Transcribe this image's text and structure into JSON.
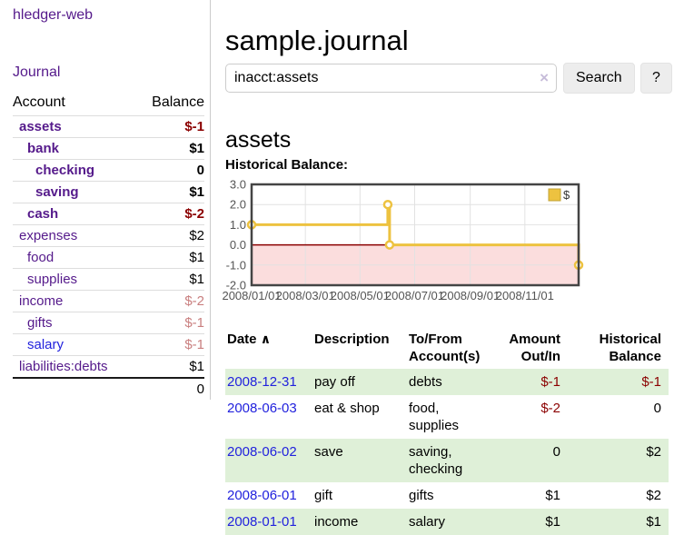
{
  "app": {
    "brand": "hledger-web",
    "nav_journal": "Journal"
  },
  "sidebar": {
    "columns": {
      "account": "Account",
      "balance": "Balance"
    },
    "rows": [
      {
        "account": "assets",
        "balance": "$-1",
        "depth": 1,
        "bold": true,
        "tone": "negative-strong",
        "link": "visited"
      },
      {
        "account": "bank",
        "balance": "$1",
        "depth": 2,
        "bold": true,
        "tone": "normal",
        "link": "visited"
      },
      {
        "account": "checking",
        "balance": "0",
        "depth": 3,
        "bold": true,
        "tone": "normal",
        "link": "visited"
      },
      {
        "account": "saving",
        "balance": "$1",
        "depth": 3,
        "bold": true,
        "tone": "normal",
        "link": "visited"
      },
      {
        "account": "cash",
        "balance": "$-2",
        "depth": 2,
        "bold": true,
        "tone": "negative-strong",
        "link": "visited"
      },
      {
        "account": "expenses",
        "balance": "$2",
        "depth": 1,
        "bold": false,
        "tone": "normal",
        "link": "visited"
      },
      {
        "account": "food",
        "balance": "$1",
        "depth": 2,
        "bold": false,
        "tone": "normal",
        "link": "visited"
      },
      {
        "account": "supplies",
        "balance": "$1",
        "depth": 2,
        "bold": false,
        "tone": "normal",
        "link": "visited"
      },
      {
        "account": "income",
        "balance": "$-2",
        "depth": 1,
        "bold": false,
        "tone": "negative-soft",
        "link": "visited"
      },
      {
        "account": "gifts",
        "balance": "$-1",
        "depth": 2,
        "bold": false,
        "tone": "negative-soft",
        "link": "visited"
      },
      {
        "account": "salary",
        "balance": "$-1",
        "depth": 2,
        "bold": false,
        "tone": "negative-soft",
        "link": "new"
      },
      {
        "account": "liabilities:debts",
        "balance": "$1",
        "depth": 1,
        "bold": false,
        "tone": "normal",
        "link": "visited"
      }
    ],
    "total": "0"
  },
  "header": {
    "title": "sample.journal"
  },
  "search": {
    "value": "inacct:assets",
    "clear_icon": "×",
    "button_label": "Search",
    "help_label": "?"
  },
  "account_page": {
    "title": "assets",
    "chart_label": "Historical Balance:"
  },
  "chart_data": {
    "type": "line",
    "step": true,
    "legend": "$",
    "legend_position": "top-right",
    "series": [
      {
        "name": "$",
        "color": "#edc240",
        "points": [
          {
            "date": "2008-01-01",
            "day": 0,
            "value": 1
          },
          {
            "date": "2008-06-01",
            "day": 152,
            "value": 2
          },
          {
            "date": "2008-06-03",
            "day": 154,
            "value": 0
          },
          {
            "date": "2008-12-31",
            "day": 365,
            "value": -1
          }
        ]
      }
    ],
    "xlim": [
      0,
      365
    ],
    "ylim": [
      -2,
      3
    ],
    "yticks": [
      {
        "v": 3,
        "label": "3.0"
      },
      {
        "v": 2,
        "label": "2.0"
      },
      {
        "v": 1,
        "label": "1.0"
      },
      {
        "v": 0,
        "label": "0.0"
      },
      {
        "v": -1,
        "label": "-1.0"
      },
      {
        "v": -2,
        "label": "-2.0"
      }
    ],
    "xticks": [
      {
        "day": 0,
        "label": "2008/01/01"
      },
      {
        "day": 60,
        "label": "2008/03/01"
      },
      {
        "day": 121,
        "label": "2008/05/01"
      },
      {
        "day": 182,
        "label": "2008/07/01"
      },
      {
        "day": 244,
        "label": "2008/09/01"
      },
      {
        "day": 305,
        "label": "2008/11/01"
      }
    ],
    "grid": true,
    "negative_region_fill": "#fbdddd",
    "zero_line_color": "#8b0000",
    "tick_label_color": "#545454",
    "border_color": "#444444"
  },
  "register": {
    "columns": [
      {
        "label": "Date",
        "label2": "",
        "sort": "∧",
        "align": "left"
      },
      {
        "label": "Description",
        "label2": "",
        "align": "left"
      },
      {
        "label": "To/From",
        "label2": "Account(s)",
        "align": "left"
      },
      {
        "label": "Amount",
        "label2": "Out/In",
        "align": "right"
      },
      {
        "label": "Historical",
        "label2": "Balance",
        "align": "right"
      }
    ],
    "rows": [
      {
        "date": "2008-12-31",
        "description": "pay off",
        "accounts": "debts",
        "amount": "$-1",
        "amount_tone": "negative",
        "balance": "$-1",
        "balance_tone": "negative"
      },
      {
        "date": "2008-06-03",
        "description": "eat & shop",
        "accounts": "food, supplies",
        "amount": "$-2",
        "amount_tone": "negative",
        "balance": "0",
        "balance_tone": "normal"
      },
      {
        "date": "2008-06-02",
        "description": "save",
        "accounts": "saving, checking",
        "amount": "0",
        "amount_tone": "normal",
        "balance": "$2",
        "balance_tone": "normal"
      },
      {
        "date": "2008-06-01",
        "description": "gift",
        "accounts": "gifts",
        "amount": "$1",
        "amount_tone": "normal",
        "balance": "$2",
        "balance_tone": "normal"
      },
      {
        "date": "2008-01-01",
        "description": "income",
        "accounts": "salary",
        "amount": "$1",
        "amount_tone": "normal",
        "balance": "$1",
        "balance_tone": "normal"
      }
    ]
  }
}
